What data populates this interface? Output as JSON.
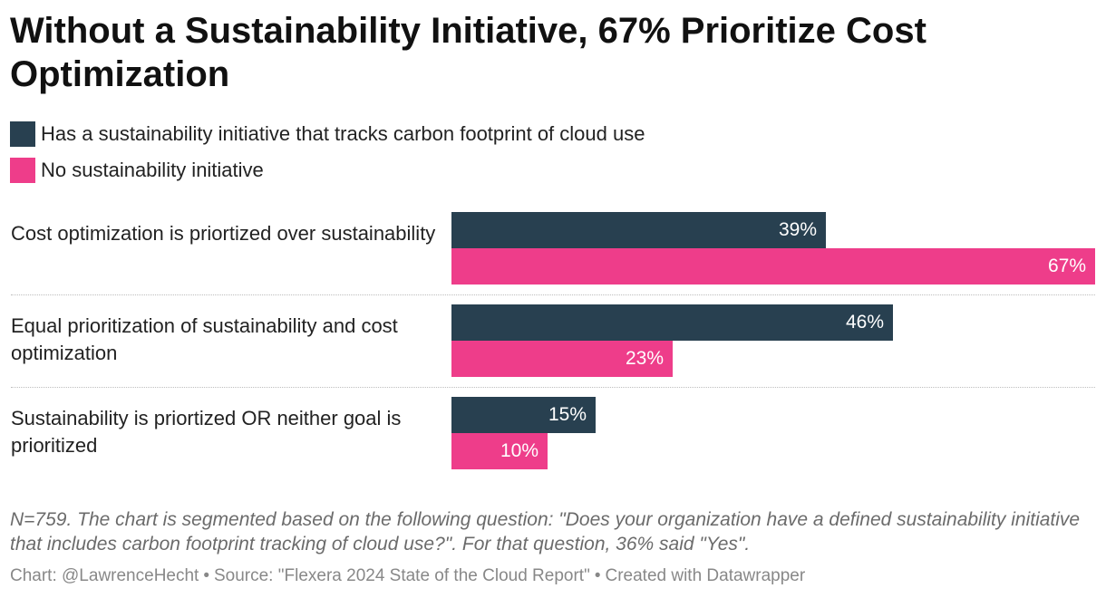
{
  "title": "Without a Sustainability Initiative, 67% Prioritize Cost Optimization",
  "colors": {
    "series_1": "#284050",
    "series_2": "#ee3d8a"
  },
  "legend": [
    {
      "label": "Has a sustainability initiative that tracks carbon footprint of cloud use"
    },
    {
      "label": "No sustainability initiative"
    }
  ],
  "chart_data": {
    "type": "bar",
    "orientation": "horizontal",
    "title": "Without a Sustainability Initiative, 67% Prioritize Cost Optimization",
    "categories": [
      "Cost optimization is priortized over sustainability",
      "Equal prioritization of sustainability and cost optimization",
      "Sustainability is priortized OR neither goal is prioritized"
    ],
    "series": [
      {
        "name": "Has a sustainability initiative that tracks carbon footprint of cloud use",
        "values": [
          39,
          46,
          15
        ],
        "labels": [
          "39%",
          "46%",
          "15%"
        ]
      },
      {
        "name": "No sustainability initiative",
        "values": [
          67,
          23,
          10
        ],
        "labels": [
          "67%",
          "23%",
          "10%"
        ]
      }
    ],
    "xlim": [
      0,
      67
    ],
    "unit": "%",
    "grid": false,
    "legend_position": "top-left"
  },
  "notes": "N=759. The chart is segmented based on the following question: \"Does your organization have a defined sustainability initiative that includes carbon footprint tracking of cloud use?\". For that question, 36% said \"Yes\".",
  "footer": {
    "chart_credit": "Chart: @LawrenceHecht",
    "source": "Source: \"Flexera 2024 State of the Cloud Report\"",
    "created_with": "Created with Datawrapper",
    "separator": "•"
  }
}
